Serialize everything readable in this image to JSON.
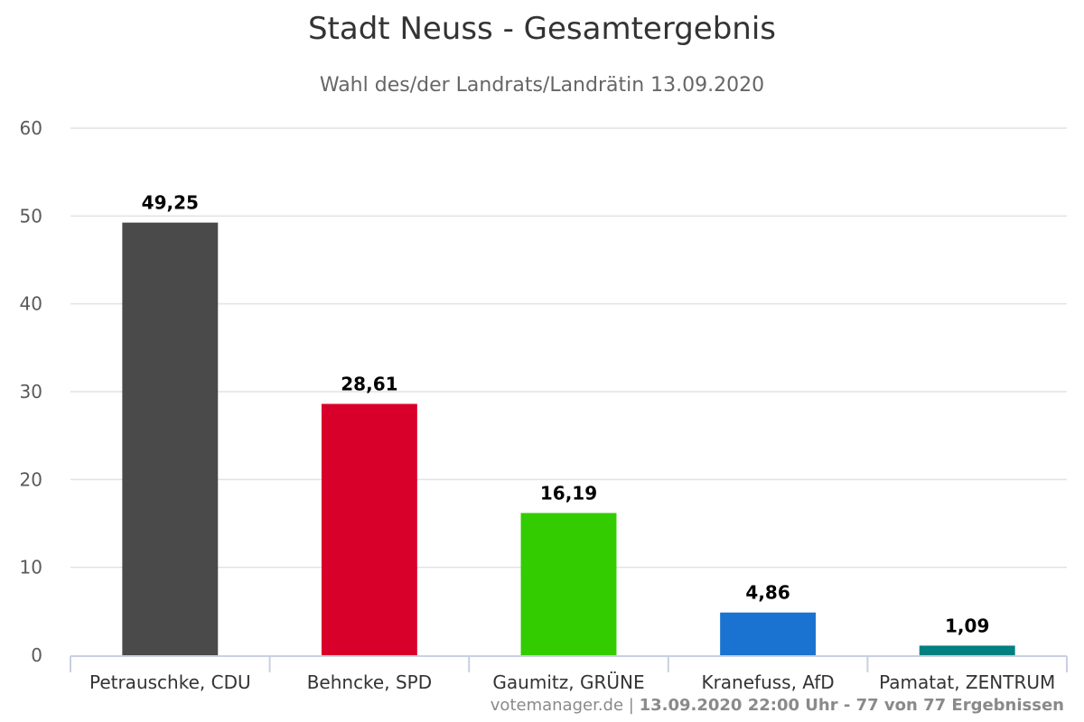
{
  "chart_data": {
    "type": "bar",
    "title": "Stadt Neuss - Gesamtergebnis",
    "subtitle": "Wahl des/der Landrats/Landrätin 13.09.2020",
    "categories": [
      "Petrauschke, CDU",
      "Behncke, SPD",
      "Gaumitz, GRÜNE",
      "Kranefuss, AfD",
      "Pamatat, ZENTRUM"
    ],
    "values": [
      49.25,
      28.61,
      16.19,
      4.86,
      1.09
    ],
    "data_labels": [
      "49,25",
      "28,61",
      "16,19",
      "4,86",
      "1,09"
    ],
    "colors": [
      "#4a4a4a",
      "#d8002b",
      "#33cc00",
      "#1a73d0",
      "#008080"
    ],
    "ylim": [
      0,
      60
    ],
    "yticks": [
      0,
      10,
      20,
      30,
      40,
      50,
      60
    ],
    "grid": true,
    "legend": "none"
  },
  "footer": {
    "source": "votemanager.de",
    "separator": " | ",
    "status": "13.09.2020 22:00 Uhr - 77 von 77 Ergebnissen"
  }
}
